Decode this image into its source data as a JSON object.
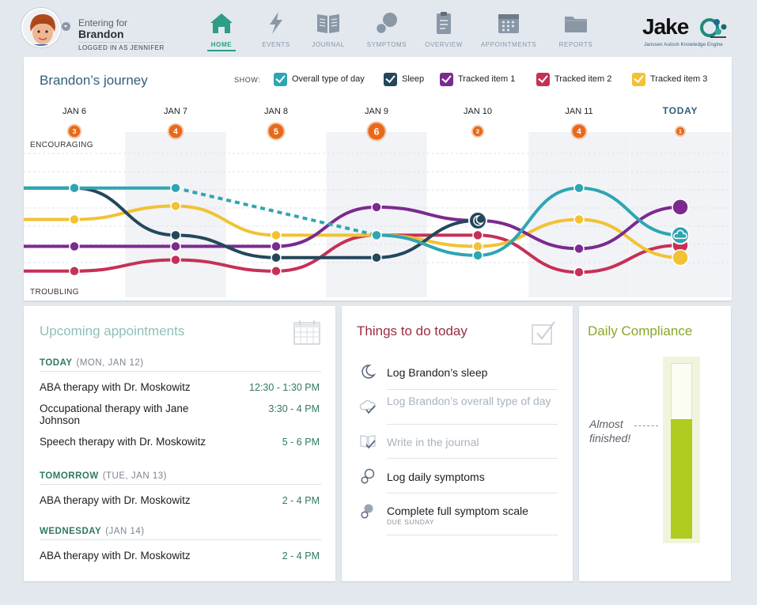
{
  "header": {
    "entering_label": "Entering for",
    "child_name": "Brandon",
    "logged_in_label": "LOGGED IN AS JENNIFER",
    "nav": [
      {
        "label": "HOME",
        "icon": "home-icon",
        "active": true
      },
      {
        "label": "EVENTS",
        "icon": "lightning-icon",
        "active": false
      },
      {
        "label": "JOURNAL",
        "icon": "book-icon",
        "active": false
      },
      {
        "label": "SYMPTOMS",
        "icon": "bubbles-icon",
        "active": false
      },
      {
        "label": "OVERVIEW",
        "icon": "clipboard-icon",
        "active": false
      },
      {
        "label": "APPOINTMENTS",
        "icon": "calendar-icon",
        "active": false
      },
      {
        "label": "REPORTS",
        "icon": "folder-icon",
        "active": false
      }
    ],
    "logo_text": "Jake",
    "logo_sub": "Janssen Autism Knowledge Engine"
  },
  "journey": {
    "title": "Brandon’s journey",
    "show_label": "SHOW:",
    "legend": [
      {
        "label": "Overall type of day",
        "color": "#2ea6b1"
      },
      {
        "label": "Sleep",
        "color": "#24475c"
      },
      {
        "label": "Tracked item 1",
        "color": "#7b2a8f"
      },
      {
        "label": "Tracked item 2",
        "color": "#c63057"
      },
      {
        "label": "Tracked item 3",
        "color": "#f1c232"
      }
    ],
    "days": [
      "JAN 6",
      "JAN 7",
      "JAN 8",
      "JAN 9",
      "JAN 10",
      "JAN 11",
      "TODAY"
    ],
    "event_counts": [
      "3",
      "4",
      "5",
      "6",
      "2",
      "4",
      "1"
    ],
    "top_label": "ENCOURAGING",
    "bottom_label": "TROUBLING",
    "event_color": "#e66a1c",
    "sleep_icon": "moon-icon",
    "overall_icon": "cloud-icon"
  },
  "chart_data": {
    "type": "line",
    "categories": [
      "JAN 6",
      "JAN 7",
      "JAN 8",
      "JAN 9",
      "JAN 10",
      "JAN 11",
      "TODAY"
    ],
    "yaxis": {
      "top": "ENCOURAGING",
      "bottom": "TROUBLING",
      "min": 0,
      "max": 10
    },
    "series": [
      {
        "name": "Overall type of day",
        "values": [
          8.4,
          8.4,
          null,
          4.2,
          2.4,
          8.4,
          4.2
        ],
        "dashed_gap": [
          1,
          3
        ]
      },
      {
        "name": "Sleep",
        "values": [
          8.4,
          4.2,
          2.2,
          2.2,
          5.5,
          null,
          null
        ]
      },
      {
        "name": "Tracked item 1",
        "values": [
          3.2,
          3.2,
          3.2,
          6.7,
          5.5,
          3.0,
          6.7
        ]
      },
      {
        "name": "Tracked item 2",
        "values": [
          1.0,
          2.0,
          1.0,
          4.2,
          4.2,
          0.9,
          3.3
        ]
      },
      {
        "name": "Tracked item 3",
        "values": [
          5.6,
          6.8,
          4.2,
          4.2,
          3.2,
          5.6,
          2.2
        ]
      }
    ],
    "event_counts": [
      3,
      4,
      5,
      6,
      2,
      4,
      1
    ]
  },
  "appointments": {
    "title": "Upcoming appointments",
    "groups": [
      {
        "day": "TODAY",
        "date": "(MON, JAN 12)",
        "items": [
          {
            "name": "ABA therapy with Dr. Moskowitz",
            "time": "12:30 - 1:30 PM"
          },
          {
            "name": "Occupational therapy with Jane Johnson",
            "time": "3:30 - 4 PM"
          },
          {
            "name": "Speech therapy with Dr. Moskowitz",
            "time": "5 - 6 PM"
          }
        ]
      },
      {
        "day": "TOMORROW",
        "date": "(TUE, JAN 13)",
        "items": [
          {
            "name": "ABA therapy with Dr. Moskowitz",
            "time": "2 - 4 PM"
          }
        ]
      },
      {
        "day": "WEDNESDAY",
        "date": "(JAN 14)",
        "items": [
          {
            "name": "ABA therapy with Dr. Moskowitz",
            "time": "2 - 4 PM"
          }
        ]
      }
    ]
  },
  "todo": {
    "title": "Things to do today",
    "tasks": [
      {
        "label": "Log Brandon’s sleep",
        "done": false,
        "icon": "moon-icon"
      },
      {
        "label": "Log Brandon’s overall type of day",
        "done": true,
        "icon": "cloud-check-icon"
      },
      {
        "label": "Write in the journal",
        "done": true,
        "icon": "journal-check-icon"
      },
      {
        "label": "Log daily symptoms",
        "done": false,
        "icon": "bubbles-icon"
      },
      {
        "label": "Complete full symptom scale",
        "done": false,
        "icon": "bubbles-icon",
        "sub": "DUE SUNDAY"
      }
    ]
  },
  "compliance": {
    "title": "Daily Compliance",
    "note_line1": "Almost",
    "note_line2": "finished!",
    "fraction": 0.68,
    "color": "#b0cb1f"
  }
}
